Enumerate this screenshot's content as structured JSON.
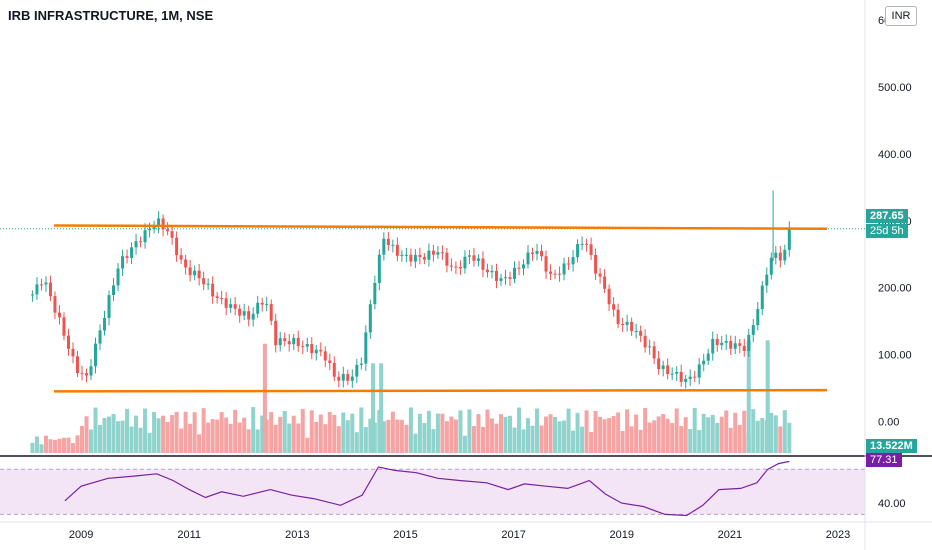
{
  "header": {
    "title": "IRB INFRASTRUCTURE, 1M, NSE",
    "currency_button": "INR"
  },
  "price_tag": {
    "value": "287.65",
    "countdown": "25d 5h"
  },
  "volume_tag": {
    "value": "13.522M"
  },
  "rsi_tag": {
    "value": "77.31"
  },
  "colors": {
    "up": "#26a69a",
    "down": "#ef5350",
    "up_vol": "#8fd3cc",
    "down_vol": "#f5a3a3",
    "channel": "#f57c00",
    "rsi_line": "#7b1fa2",
    "rsi_band": "#f3e5f5",
    "price_line": "#26a69a"
  },
  "chart_data": {
    "type": "candlestick",
    "price_axis": {
      "range": [
        -50,
        600
      ],
      "ticks": [
        "600.00",
        "500.00",
        "400.00",
        "300.00",
        "200.00",
        "100.00",
        "0.00"
      ]
    },
    "rsi_axis": {
      "range": [
        25,
        80
      ],
      "ticks": [
        "40.00"
      ]
    },
    "x_axis": {
      "range": [
        2007.5,
        2023.5
      ],
      "ticks": [
        "2009",
        "2011",
        "2013",
        "2015",
        "2017",
        "2019",
        "2021",
        "2023"
      ]
    },
    "channel_lines": [
      {
        "from": [
          2008.5,
          293
        ],
        "to": [
          2022.8,
          288
        ]
      },
      {
        "from": [
          2008.5,
          45
        ],
        "to": [
          2022.8,
          47
        ]
      }
    ],
    "close_path": [
      [
        2008.1,
        190
      ],
      [
        2008.3,
        215
      ],
      [
        2008.6,
        150
      ],
      [
        2008.9,
        80
      ],
      [
        2009.1,
        65
      ],
      [
        2009.4,
        150
      ],
      [
        2009.7,
        235
      ],
      [
        2010.0,
        265
      ],
      [
        2010.4,
        300
      ],
      [
        2010.6,
        285
      ],
      [
        2010.9,
        230
      ],
      [
        2011.2,
        215
      ],
      [
        2011.5,
        185
      ],
      [
        2011.8,
        170
      ],
      [
        2012.1,
        155
      ],
      [
        2012.4,
        185
      ],
      [
        2012.6,
        120
      ],
      [
        2012.9,
        120
      ],
      [
        2013.2,
        110
      ],
      [
        2013.5,
        100
      ],
      [
        2013.7,
        65
      ],
      [
        2014.0,
        65
      ],
      [
        2014.2,
        95
      ],
      [
        2014.4,
        200
      ],
      [
        2014.6,
        275
      ],
      [
        2014.8,
        255
      ],
      [
        2015.0,
        245
      ],
      [
        2015.3,
        245
      ],
      [
        2015.6,
        255
      ],
      [
        2015.9,
        225
      ],
      [
        2016.2,
        250
      ],
      [
        2016.5,
        225
      ],
      [
        2016.8,
        210
      ],
      [
        2017.1,
        230
      ],
      [
        2017.4,
        260
      ],
      [
        2017.7,
        215
      ],
      [
        2018.0,
        235
      ],
      [
        2018.3,
        275
      ],
      [
        2018.5,
        230
      ],
      [
        2018.7,
        195
      ],
      [
        2018.9,
        150
      ],
      [
        2019.2,
        140
      ],
      [
        2019.5,
        110
      ],
      [
        2019.7,
        80
      ],
      [
        2020.0,
        70
      ],
      [
        2020.2,
        60
      ],
      [
        2020.4,
        75
      ],
      [
        2020.7,
        120
      ],
      [
        2021.0,
        115
      ],
      [
        2021.3,
        110
      ],
      [
        2021.5,
        165
      ],
      [
        2021.7,
        230
      ],
      [
        2021.8,
        250
      ],
      [
        2022.0,
        245
      ],
      [
        2022.1,
        288
      ]
    ],
    "rsi_path": [
      [
        2008.7,
        42
      ],
      [
        2009.0,
        55
      ],
      [
        2009.5,
        62
      ],
      [
        2010.0,
        64
      ],
      [
        2010.4,
        66
      ],
      [
        2010.7,
        60
      ],
      [
        2011.0,
        52
      ],
      [
        2011.3,
        45
      ],
      [
        2011.6,
        50
      ],
      [
        2012.0,
        46
      ],
      [
        2012.5,
        52
      ],
      [
        2012.9,
        47
      ],
      [
        2013.3,
        44
      ],
      [
        2013.8,
        38
      ],
      [
        2014.2,
        47
      ],
      [
        2014.5,
        72
      ],
      [
        2014.8,
        69
      ],
      [
        2015.2,
        67
      ],
      [
        2015.6,
        62
      ],
      [
        2016.0,
        60
      ],
      [
        2016.5,
        58
      ],
      [
        2016.9,
        52
      ],
      [
        2017.2,
        57
      ],
      [
        2017.6,
        55
      ],
      [
        2018.0,
        53
      ],
      [
        2018.4,
        60
      ],
      [
        2018.7,
        48
      ],
      [
        2019.0,
        40
      ],
      [
        2019.4,
        37
      ],
      [
        2019.8,
        30
      ],
      [
        2020.2,
        29
      ],
      [
        2020.5,
        38
      ],
      [
        2020.8,
        52
      ],
      [
        2021.2,
        53
      ],
      [
        2021.5,
        58
      ],
      [
        2021.7,
        70
      ],
      [
        2021.9,
        75
      ],
      [
        2022.1,
        77
      ]
    ],
    "volume_spikes": [
      {
        "x": 2012.4,
        "vol": 0.95,
        "dir": "down"
      },
      {
        "x": 2014.4,
        "vol": 0.78,
        "dir": "up"
      },
      {
        "x": 2014.55,
        "vol": 0.78,
        "dir": "up"
      },
      {
        "x": 2021.35,
        "vol": 0.98,
        "dir": "up"
      },
      {
        "x": 2021.7,
        "vol": 0.98,
        "dir": "up"
      }
    ]
  }
}
